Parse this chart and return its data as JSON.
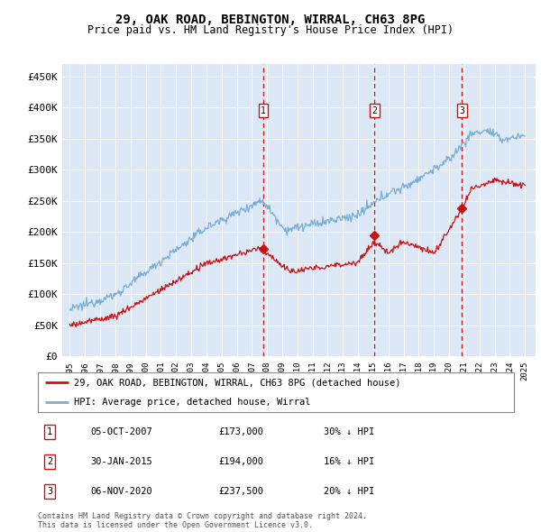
{
  "title": "29, OAK ROAD, BEBINGTON, WIRRAL, CH63 8PG",
  "subtitle": "Price paid vs. HM Land Registry's House Price Index (HPI)",
  "bg_color": "#dce8f5",
  "hpi_color": "#7aadd4",
  "price_color": "#cc1111",
  "vline_color": "#cc1111",
  "ylim": [
    0,
    470000
  ],
  "yticks": [
    0,
    50000,
    100000,
    150000,
    200000,
    250000,
    300000,
    350000,
    400000,
    450000
  ],
  "ytick_labels": [
    "£0",
    "£50K",
    "£100K",
    "£150K",
    "£200K",
    "£250K",
    "£300K",
    "£350K",
    "£400K",
    "£450K"
  ],
  "sale_prices": [
    173000,
    194000,
    237500
  ],
  "sale_labels": [
    "1",
    "2",
    "3"
  ],
  "sale_pct": [
    "30%",
    "16%",
    "20%"
  ],
  "sale_date_labels": [
    "05-OCT-2007",
    "30-JAN-2015",
    "06-NOV-2020"
  ],
  "sale_price_labels": [
    "£173,000",
    "£194,000",
    "£237,500"
  ],
  "sale_years_num": [
    2007.75,
    2015.08,
    2020.85
  ],
  "footer_line1": "Contains HM Land Registry data © Crown copyright and database right 2024.",
  "footer_line2": "This data is licensed under the Open Government Licence v3.0.",
  "legend_label1": "29, OAK ROAD, BEBINGTON, WIRRAL, CH63 8PG (detached house)",
  "legend_label2": "HPI: Average price, detached house, Wirral"
}
